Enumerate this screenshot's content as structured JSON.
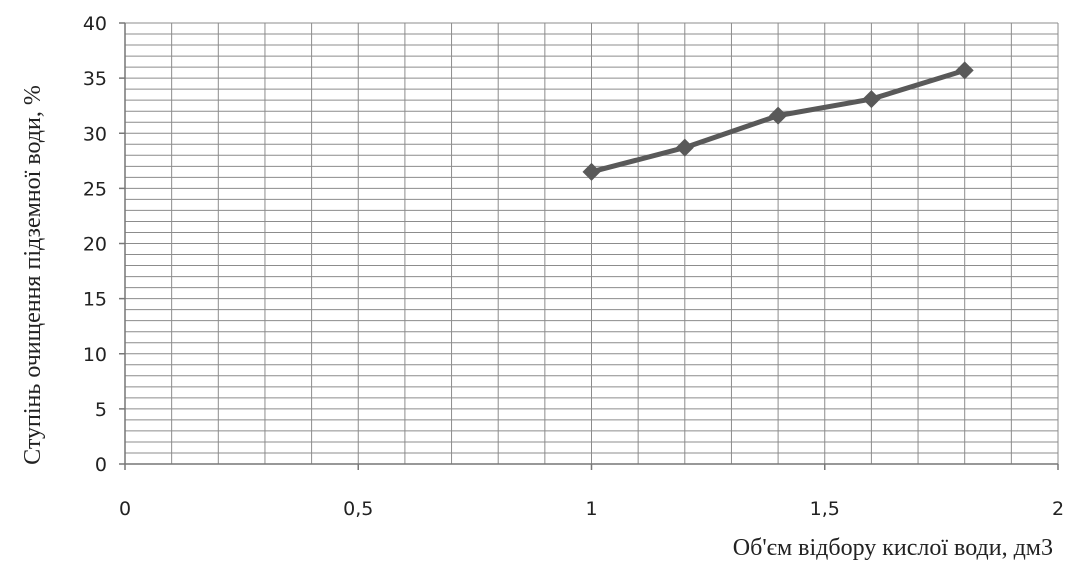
{
  "chart_data": {
    "type": "line",
    "title": "",
    "xlabel": "Об'єм відбору кислої води, дм3",
    "ylabel": "Ступінь очищення підземної води, %",
    "xlim": [
      0,
      2
    ],
    "ylim": [
      0,
      40
    ],
    "x_ticks": [
      "0",
      "0,5",
      "1",
      "1,5",
      "2"
    ],
    "x_tick_values": [
      0,
      0.5,
      1,
      1.5,
      2
    ],
    "y_ticks": [
      "0",
      "5",
      "10",
      "15",
      "20",
      "25",
      "30",
      "35",
      "40"
    ],
    "y_tick_values": [
      0,
      5,
      10,
      15,
      20,
      25,
      30,
      35,
      40
    ],
    "x_minor_step": 0.1,
    "y_minor_step": 1,
    "grid": true,
    "legend": "none",
    "series": [
      {
        "marker": "diamond",
        "color": "#595959",
        "x": [
          1.0,
          1.2,
          1.4,
          1.6,
          1.8
        ],
        "y": [
          26.5,
          28.7,
          31.6,
          33.1,
          35.7
        ]
      }
    ]
  }
}
